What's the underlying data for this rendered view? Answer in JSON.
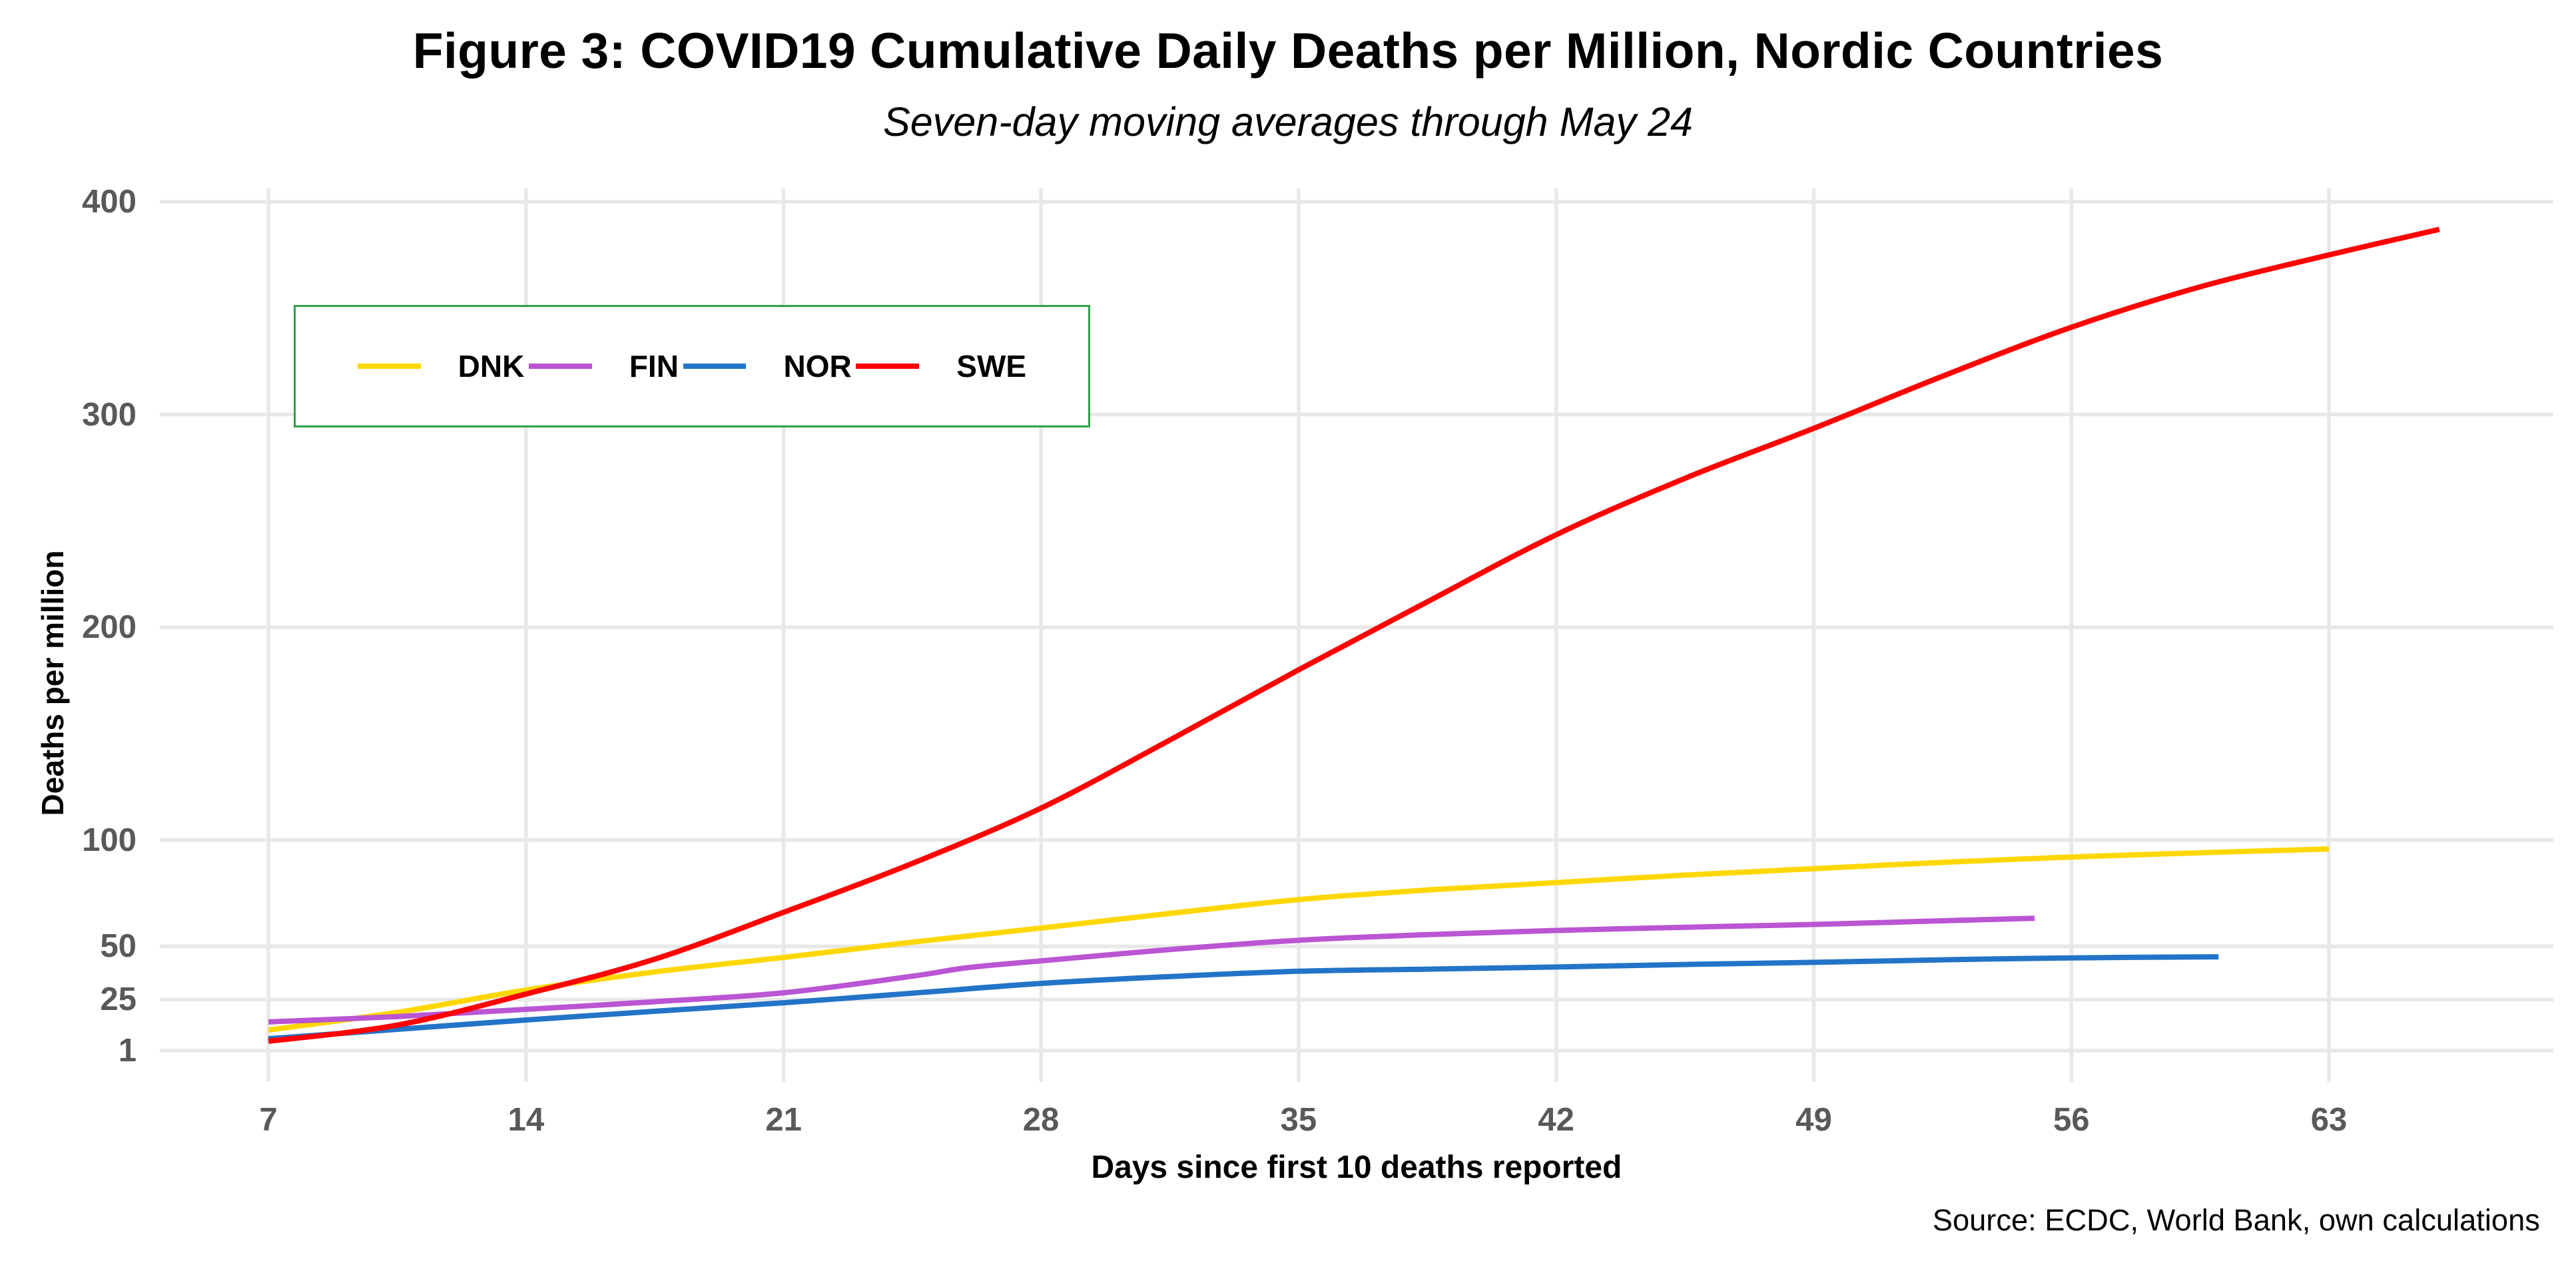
{
  "texts": {
    "title": "Figure 3: COVID19 Cumulative Daily Deaths per Million, Nordic Countries",
    "subtitle": "Seven-day moving averages through May 24",
    "caption": "Source: ECDC, World Bank, own calculations"
  },
  "style": {
    "grid_color": "#e8e8e8",
    "tick_label_color": "#595959",
    "legend_border_color": "#2fa148",
    "background_color": "#ffffff",
    "series_colors": {
      "DNK": "#ffd700",
      "FIN": "#ba55d3",
      "NOR": "#2374c8",
      "SWE": "#ff0000"
    }
  },
  "legend": {
    "items": [
      {
        "label": "DNK",
        "color": "#ffd700"
      },
      {
        "label": "FIN",
        "color": "#ba55d3"
      },
      {
        "label": "NOR",
        "color": "#2374c8"
      },
      {
        "label": "SWE",
        "color": "#ff0000"
      }
    ]
  },
  "chart_data": {
    "type": "line",
    "title": "Figure 3: COVID19 Cumulative Daily Deaths per Million, Nordic Countries",
    "subtitle": "Seven-day moving averages through May 24",
    "caption": "Source: ECDC, World Bank, own calculations",
    "xlabel": "Days since first 10 deaths reported",
    "ylabel": "Deaths per million",
    "x_ticks": [
      7,
      14,
      21,
      28,
      35,
      42,
      49,
      56,
      63
    ],
    "y_ticks": [
      1,
      25,
      50,
      100,
      200,
      300,
      400
    ],
    "xlim": [
      4,
      69.1
    ],
    "ylim": [
      -14,
      406
    ],
    "grid": true,
    "legend_position": "inside-top-left",
    "series": [
      {
        "name": "DNK",
        "color": "#ffd700",
        "points": [
          [
            7,
            10.7
          ],
          [
            10.5,
            19
          ],
          [
            14,
            29.5
          ],
          [
            17.5,
            38
          ],
          [
            21,
            44.8
          ],
          [
            24.5,
            52
          ],
          [
            28,
            58.6
          ],
          [
            31.5,
            65.5
          ],
          [
            35,
            72
          ],
          [
            38.5,
            76.5
          ],
          [
            42,
            80
          ],
          [
            45.5,
            83.5
          ],
          [
            49,
            86.5
          ],
          [
            52.5,
            89.5
          ],
          [
            56,
            92
          ],
          [
            59.5,
            94
          ],
          [
            63,
            95.8
          ]
        ]
      },
      {
        "name": "FIN",
        "color": "#ba55d3",
        "points": [
          [
            7,
            14.5
          ],
          [
            10.5,
            17
          ],
          [
            14,
            20.4
          ],
          [
            17.5,
            24
          ],
          [
            21,
            28.2
          ],
          [
            24.5,
            36
          ],
          [
            26,
            40
          ],
          [
            28,
            43.2
          ],
          [
            31.5,
            48.5
          ],
          [
            35,
            52.9
          ],
          [
            38.5,
            55.5
          ],
          [
            42,
            57.5
          ],
          [
            45.5,
            59
          ],
          [
            49,
            60.3
          ],
          [
            52,
            61.8
          ],
          [
            55,
            63.2
          ]
        ]
      },
      {
        "name": "NOR",
        "color": "#2374c8",
        "points": [
          [
            7,
            6.6
          ],
          [
            10.5,
            11
          ],
          [
            14,
            15.4
          ],
          [
            17.5,
            19.5
          ],
          [
            21,
            23.5
          ],
          [
            24.5,
            28
          ],
          [
            28,
            32.6
          ],
          [
            31.5,
            35.8
          ],
          [
            35,
            38.3
          ],
          [
            38.5,
            39.3
          ],
          [
            42,
            40.3
          ],
          [
            45.5,
            41.5
          ],
          [
            49,
            42.5
          ],
          [
            52.5,
            43.7
          ],
          [
            56,
            44.6
          ],
          [
            60,
            45.1
          ]
        ]
      },
      {
        "name": "SWE",
        "color": "#ff0000",
        "points": [
          [
            7,
            5.4
          ],
          [
            10.5,
            13
          ],
          [
            14,
            27.6
          ],
          [
            17.5,
            44
          ],
          [
            21,
            66
          ],
          [
            24.5,
            89
          ],
          [
            28,
            115
          ],
          [
            31.5,
            147
          ],
          [
            35,
            180
          ],
          [
            38.5,
            212
          ],
          [
            42,
            243.5
          ],
          [
            45.5,
            270
          ],
          [
            49,
            293.5
          ],
          [
            52.5,
            318
          ],
          [
            56,
            341
          ],
          [
            59.5,
            360
          ],
          [
            63,
            375
          ],
          [
            66,
            387
          ]
        ]
      }
    ]
  }
}
